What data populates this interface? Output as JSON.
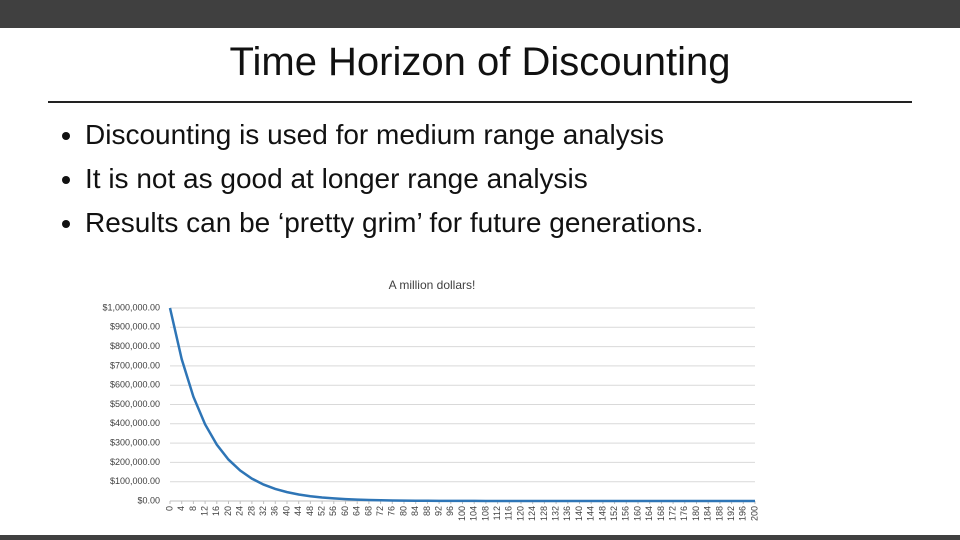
{
  "slide": {
    "title": "Time Horizon of Discounting",
    "bullets": [
      "Discounting is used for medium range analysis",
      "It is not as good at longer range analysis",
      "Results can be ‘pretty grim’ for future generations."
    ]
  },
  "chart_data": {
    "type": "line",
    "title": "A million dollars!",
    "x": [
      0,
      4,
      8,
      12,
      16,
      20,
      24,
      28,
      32,
      36,
      40,
      44,
      48,
      52,
      56,
      60,
      64,
      68,
      72,
      76,
      80,
      84,
      88,
      92,
      96,
      100,
      104,
      108,
      112,
      116,
      120,
      124,
      128,
      132,
      136,
      140,
      144,
      148,
      152,
      156,
      160,
      164,
      168,
      172,
      176,
      180,
      184,
      188,
      192,
      196,
      200
    ],
    "series": [
      {
        "color": "#2e75b6",
        "values": [
          1000000,
          735030,
          540269,
          397114,
          291890,
          214548,
          157699,
          115914,
          85200,
          62625,
          46031,
          33834,
          24869,
          18280,
          13436,
          9876,
          7259,
          5336,
          3922,
          2883,
          2119,
          1557,
          1145,
          841,
          618,
          455,
          334,
          246,
          181,
          133,
          98,
          72,
          53,
          39,
          28,
          21,
          15,
          11,
          8,
          6,
          5,
          3,
          3,
          2,
          1,
          1,
          1,
          1,
          0,
          0,
          0
        ]
      }
    ],
    "xlim": [
      0,
      200
    ],
    "xticks": [
      0,
      4,
      8,
      12,
      16,
      20,
      24,
      28,
      32,
      36,
      40,
      44,
      48,
      52,
      56,
      60,
      64,
      68,
      72,
      76,
      80,
      84,
      88,
      92,
      96,
      100,
      104,
      108,
      112,
      116,
      120,
      124,
      128,
      132,
      136,
      140,
      144,
      148,
      152,
      156,
      160,
      164,
      168,
      172,
      176,
      180,
      184,
      188,
      192,
      196,
      200
    ],
    "ylim": [
      0,
      1000000
    ],
    "yticks": [
      {
        "value": 0,
        "label": "$0.00"
      },
      {
        "value": 100000,
        "label": "$100,000.00"
      },
      {
        "value": 200000,
        "label": "$200,000.00"
      },
      {
        "value": 300000,
        "label": "$300,000.00"
      },
      {
        "value": 400000,
        "label": "$400,000.00"
      },
      {
        "value": 500000,
        "label": "$500,000.00"
      },
      {
        "value": 600000,
        "label": "$600,000.00"
      },
      {
        "value": 700000,
        "label": "$700,000.00"
      },
      {
        "value": 800000,
        "label": "$800,000.00"
      },
      {
        "value": 900000,
        "label": "$900,000.00"
      },
      {
        "value": 1000000,
        "label": "$1,000,000.00"
      }
    ],
    "grid": true
  }
}
